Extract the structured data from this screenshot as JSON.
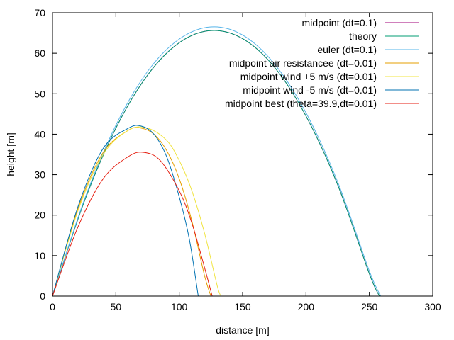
{
  "chart_data": {
    "type": "line",
    "title": "",
    "xlabel": "distance [m]",
    "ylabel": "height [m]",
    "xlim": [
      0,
      300
    ],
    "ylim": [
      0,
      70
    ],
    "x_ticks": [
      "0",
      "50",
      "100",
      "150",
      "200",
      "250",
      "300"
    ],
    "y_ticks": [
      "0",
      "10",
      "20",
      "30",
      "40",
      "50",
      "60",
      "70"
    ],
    "grid": false,
    "legend_position": "top-right",
    "series": [
      {
        "name": "midpoint (dt=0.1)",
        "color": "#a0007a",
        "x": [
          0,
          25,
          50,
          75,
          100,
          125,
          150,
          175,
          200,
          225,
          250,
          258
        ],
        "y": [
          0,
          23.3,
          41.5,
          54.6,
          62.6,
          65.6,
          63.6,
          56.6,
          44.5,
          27.5,
          5.5,
          0
        ]
      },
      {
        "name": "theory",
        "color": "#009e73",
        "x": [
          0,
          25,
          50,
          75,
          100,
          125,
          150,
          175,
          200,
          225,
          250,
          258
        ],
        "y": [
          0,
          23.3,
          41.5,
          54.6,
          62.6,
          65.6,
          63.6,
          56.6,
          44.5,
          27.5,
          5.5,
          0
        ]
      },
      {
        "name": "euler (dt=0.1)",
        "color": "#56b4e9",
        "x": [
          0,
          25,
          50,
          75,
          100,
          125,
          150,
          175,
          200,
          225,
          250,
          259
        ],
        "y": [
          0,
          23.7,
          42.2,
          55.5,
          63.5,
          66.5,
          64.5,
          57.4,
          45.3,
          28.2,
          6.2,
          0
        ]
      },
      {
        "name": "midpoint air resistancee (dt=0.01)",
        "color": "#e69f00",
        "x": [
          0,
          20,
          40,
          60,
          70,
          80,
          90,
          100,
          110,
          120,
          125
        ],
        "y": [
          0,
          21.5,
          35.5,
          41.0,
          41.5,
          40.0,
          36.0,
          29.0,
          18.5,
          5.0,
          0
        ]
      },
      {
        "name": "midpoint wind +5 m/s (dt=0.01)",
        "color": "#f0e442",
        "x": [
          0,
          20,
          40,
          60,
          75,
          90,
          100,
          110,
          120,
          130,
          133
        ],
        "y": [
          0,
          21.0,
          35.0,
          41.0,
          41.5,
          38.5,
          33.5,
          26.0,
          15.5,
          2.5,
          0
        ]
      },
      {
        "name": "midpoint wind -5 m/s (dt=0.01)",
        "color": "#0072b2",
        "x": [
          0,
          20,
          40,
          60,
          70,
          80,
          90,
          100,
          108,
          115
        ],
        "y": [
          0,
          22.0,
          36.5,
          41.5,
          42.0,
          40.0,
          34.5,
          24.5,
          14.0,
          0
        ]
      },
      {
        "name": "midpoint best (theta=39.9,dt=0.01)",
        "color": "#e51e10",
        "x": [
          0,
          20,
          40,
          60,
          72,
          85,
          100,
          110,
          120,
          126
        ],
        "y": [
          0,
          17.0,
          29.0,
          34.5,
          35.5,
          33.5,
          26.0,
          18.0,
          7.0,
          0
        ]
      }
    ]
  }
}
